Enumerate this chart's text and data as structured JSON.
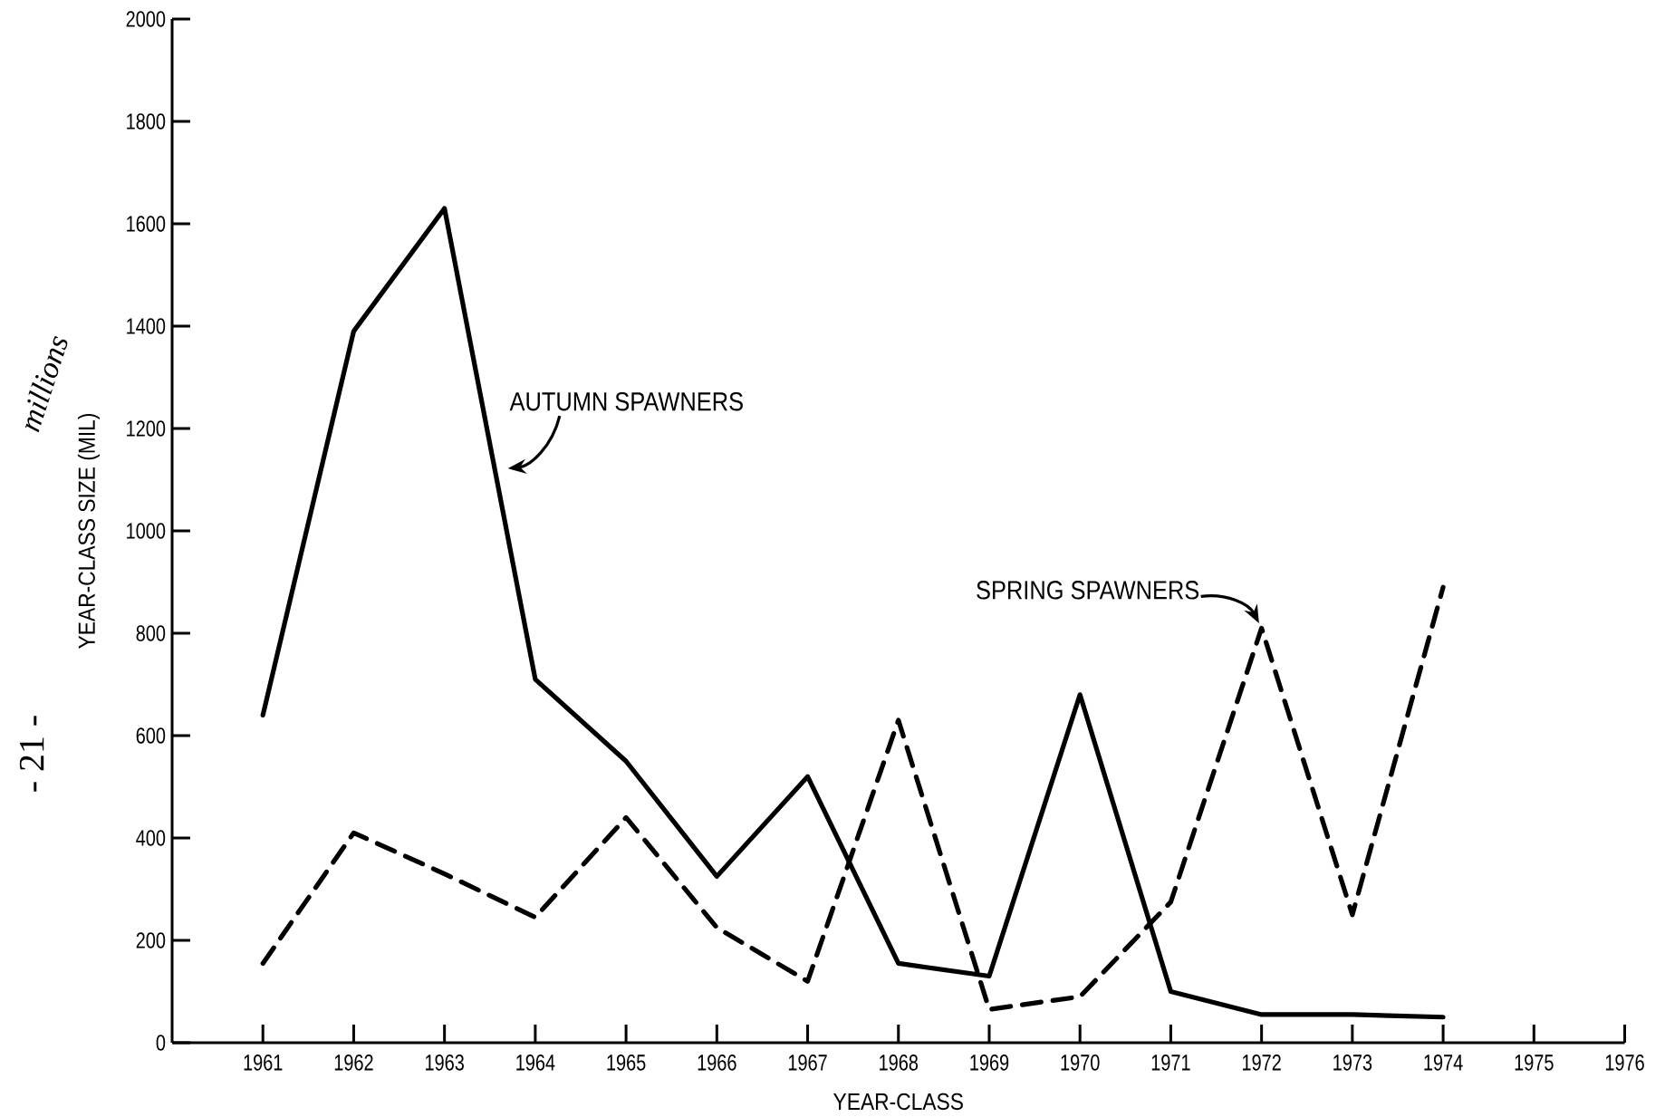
{
  "chart_data": {
    "type": "line",
    "xlabel": "YEAR-CLASS",
    "ylabel": "YEAR-CLASS SIZE (MIL)",
    "x": [
      1961,
      1962,
      1963,
      1964,
      1965,
      1966,
      1967,
      1968,
      1969,
      1970,
      1971,
      1972,
      1973,
      1974
    ],
    "series": [
      {
        "color": "#000000",
        "line_style": "solid",
        "values": [
          640,
          1390,
          1630,
          710,
          550,
          325,
          520,
          155,
          130,
          680,
          100,
          55,
          55,
          50
        ]
      },
      {
        "color": "#000000",
        "line_style": "dashed",
        "values": [
          155,
          410,
          330,
          245,
          440,
          225,
          120,
          630,
          65,
          90,
          275,
          810,
          250,
          890
        ]
      }
    ],
    "xlim": [
      1960,
      1976
    ],
    "xticks": [
      1961,
      1962,
      1963,
      1964,
      1965,
      1966,
      1967,
      1968,
      1969,
      1970,
      1971,
      1972,
      1973,
      1974,
      1975,
      1976
    ],
    "ylim": [
      0,
      2000
    ],
    "yticks": [
      0,
      200,
      400,
      600,
      800,
      1000,
      1200,
      1400,
      1600,
      1800,
      2000
    ],
    "annotations": [
      {
        "text": "AUTUMN SPAWNERS",
        "x": 1963.6,
        "y": 1120
      },
      {
        "text": "SPRING SPAWNERS",
        "x": 1972,
        "y": 810
      },
      "millions",
      "- 21 -"
    ]
  }
}
